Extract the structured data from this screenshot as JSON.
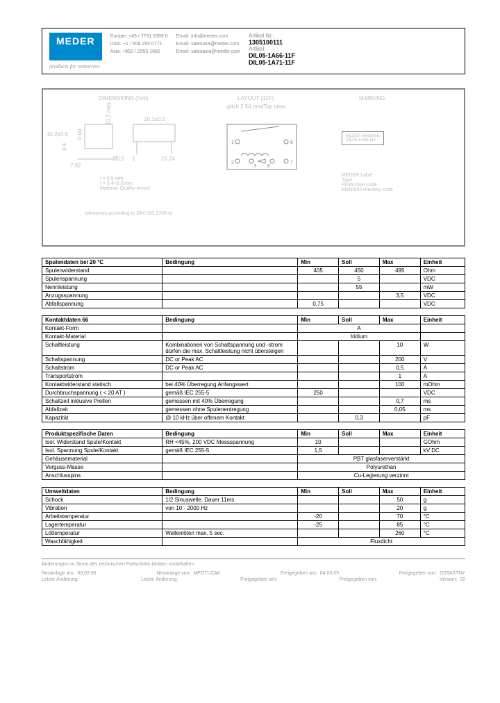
{
  "header": {
    "logo_top": "MEDER",
    "logo_bottom": "electronic",
    "tagline": "products for tomorrow",
    "contacts": {
      "europe": "Europe: +49 / 7731 8399 0",
      "usa": "USA: +1 / 508 295 0771",
      "asia": "Asia: +852 / 2955 1682",
      "email1": "Email: info@meder.com",
      "email2": "Email: salesusa@meder.com",
      "email3": "Email: salesasia@meder.com"
    },
    "article_nr_label": "Artikel Nr.:",
    "article_nr": "1305100111",
    "artikel_label": "Artikel:",
    "artikel1": "DIL05-1A66-11F",
    "artikel2": "DIL05-1A71-11F"
  },
  "diagram": {
    "dimensions_title": "DIMENSIONS (mm)",
    "layout_title": "LAYOUT (11F)",
    "layout_sub": "pitch 2.54 mm/Top view",
    "marking_title": "MARKING",
    "dim_h": "10.2±0.5",
    "dim_v": "10.2 max",
    "dim_w": "20.1±0.5",
    "dim_p": "7.62",
    "dim_g": "3.4",
    "dim_s": "0.60",
    "dim_t": "15.24",
    "dim_d": "Ø0.5",
    "dim_i": "1",
    "notes1": "I = 0.5 mm",
    "notes2": "I = 3.4÷0.3 mm",
    "notes3": "Material: Quality tinned",
    "tol": "tolerances according to DIN ISO 2768-m",
    "mark1": "MEDER electronic",
    "mark2": "DIL05-1A66-11F",
    "mark_l1": "MEDER Label",
    "mark_l2": "Type",
    "mark_l3": "Production code",
    "mark_l4": "EN60062+Factory code"
  },
  "tables": {
    "t1": {
      "title": "Spulendaten bei 20 °C",
      "headers": [
        "Bedingung",
        "Min",
        "Soll",
        "Max",
        "Einheit"
      ],
      "rows": [
        [
          "Spulenwiderstand",
          "",
          "405",
          "450",
          "495",
          "Ohm"
        ],
        [
          "Spulenspannung",
          "",
          "",
          "5",
          "",
          "VDC"
        ],
        [
          "Nennleistung",
          "",
          "",
          "55",
          "",
          "mW"
        ],
        [
          "Anzugsspannung",
          "",
          "",
          "",
          "3,5",
          "VDC"
        ],
        [
          "Abfallspannung",
          "",
          "0,75",
          "",
          "",
          "VDC"
        ]
      ]
    },
    "t2": {
      "title": "Kontaktdaten  66",
      "headers": [
        "Bedingung",
        "Min",
        "Soll",
        "Max",
        "Einheit"
      ],
      "rows": [
        [
          "Kontakt-Form",
          "",
          {
            "span": 3,
            "v": "A"
          },
          "",
          "",
          ""
        ],
        [
          "Kontakt-Material",
          "",
          {
            "span": 3,
            "v": "Iridium"
          },
          "",
          "",
          ""
        ],
        [
          "Schaltleistung",
          "Kombinationen von Schaltspannung und -strom dürfen die max. Schaltleistung nicht übersteigen",
          "",
          "",
          "10",
          "W"
        ],
        [
          "Schaltspannung",
          "DC or Peak AC",
          "",
          "",
          "200",
          "V"
        ],
        [
          "Schaltstrom",
          "DC or Peak AC",
          "",
          "",
          "0,5",
          "A"
        ],
        [
          "Transportstrom",
          "",
          "",
          "",
          "1",
          "A"
        ],
        [
          "Kontaktwiderstand statisch",
          "bei 40% Überregung Anfangswert",
          "",
          "",
          "100",
          "mOhm"
        ],
        [
          "Durchbruchspannung ( < 20 AT )",
          "gemäß IEC 255-5",
          "250",
          "",
          "",
          "VDC"
        ],
        [
          "Schaltzeit inklusive Prellen",
          "gemessen mit 40% Überregung",
          "",
          "",
          "0,7",
          "ms"
        ],
        [
          "Abfallzeit",
          "gemessen ohne Spulenentregung",
          "",
          "",
          "0,05",
          "ms"
        ],
        [
          "Kapazität",
          "@ 10 kHz über offenem Kontakt",
          "",
          "0,3",
          "",
          "pF"
        ]
      ]
    },
    "t3": {
      "title": "Produktspezifische Daten",
      "headers": [
        "Bedingung",
        "Min",
        "Soll",
        "Max",
        "Einheit"
      ],
      "rows": [
        [
          "Isol. Widerstand Spule/Kontakt",
          "RH <45%, 200 VDC Messspannung",
          "10",
          "",
          "",
          "GOhm"
        ],
        [
          "Isol. Spannung Spule/Kontakt",
          "gemäß IEC 255-5",
          "1,5",
          "",
          "",
          "kV DC"
        ],
        [
          "Gehäusematerial",
          "",
          {
            "span": 4,
            "v": "PBT glasfaserverstärkt"
          },
          "",
          "",
          ""
        ],
        [
          "Verguss-Masse",
          "",
          {
            "span": 4,
            "v": "Polyurethan"
          },
          "",
          "",
          ""
        ],
        [
          "Anschlusspins",
          "",
          {
            "span": 4,
            "v": "Cu-Legierung verzinnt"
          },
          "",
          "",
          ""
        ]
      ]
    },
    "t4": {
      "title": "Umweltdaten",
      "headers": [
        "Bedingung",
        "Min",
        "Soll",
        "Max",
        "Einheit"
      ],
      "rows": [
        [
          "Schock",
          "1/2 Sinuswelle, Dauer 11ms",
          "",
          "",
          "50",
          "g"
        ],
        [
          "Vibration",
          "von 10 - 2000 Hz",
          "",
          "",
          "20",
          "g"
        ],
        [
          "Arbeitstemperatur",
          "",
          "-20",
          "",
          "70",
          "°C"
        ],
        [
          "Lagertemperatur",
          "",
          "-25",
          "",
          "85",
          "°C"
        ],
        [
          "Löttemperatur",
          "Wellenlöten max. 5 sec.",
          "",
          "",
          "260",
          "°C"
        ],
        [
          "Waschfähigkeit",
          "",
          {
            "span": 4,
            "v": "Fluxdicht"
          },
          "",
          "",
          ""
        ]
      ]
    }
  },
  "footer": {
    "disclaimer": "Änderungen im Sinne des technischen Fortschritts bleiben vorbehalten",
    "l1a": "Neuanlage am:",
    "l1b": "03.03.09",
    "l1c": "Neuanlage von:",
    "l1d": "MPOTUZAK",
    "l1e": "Freigegeben am:",
    "l1f": "04.03.09",
    "l1g": "Freigegeben von:",
    "l1h": "DSTASTNY",
    "l2a": "Letzte Änderung:",
    "l2b": "",
    "l2c": "Letzte Änderung:",
    "l2d": "",
    "l2e": "Freigegeben am:",
    "l2f": "",
    "l2g": "Freigegeben von:",
    "l2h": "",
    "ver_label": "Version:",
    "ver": "02"
  }
}
